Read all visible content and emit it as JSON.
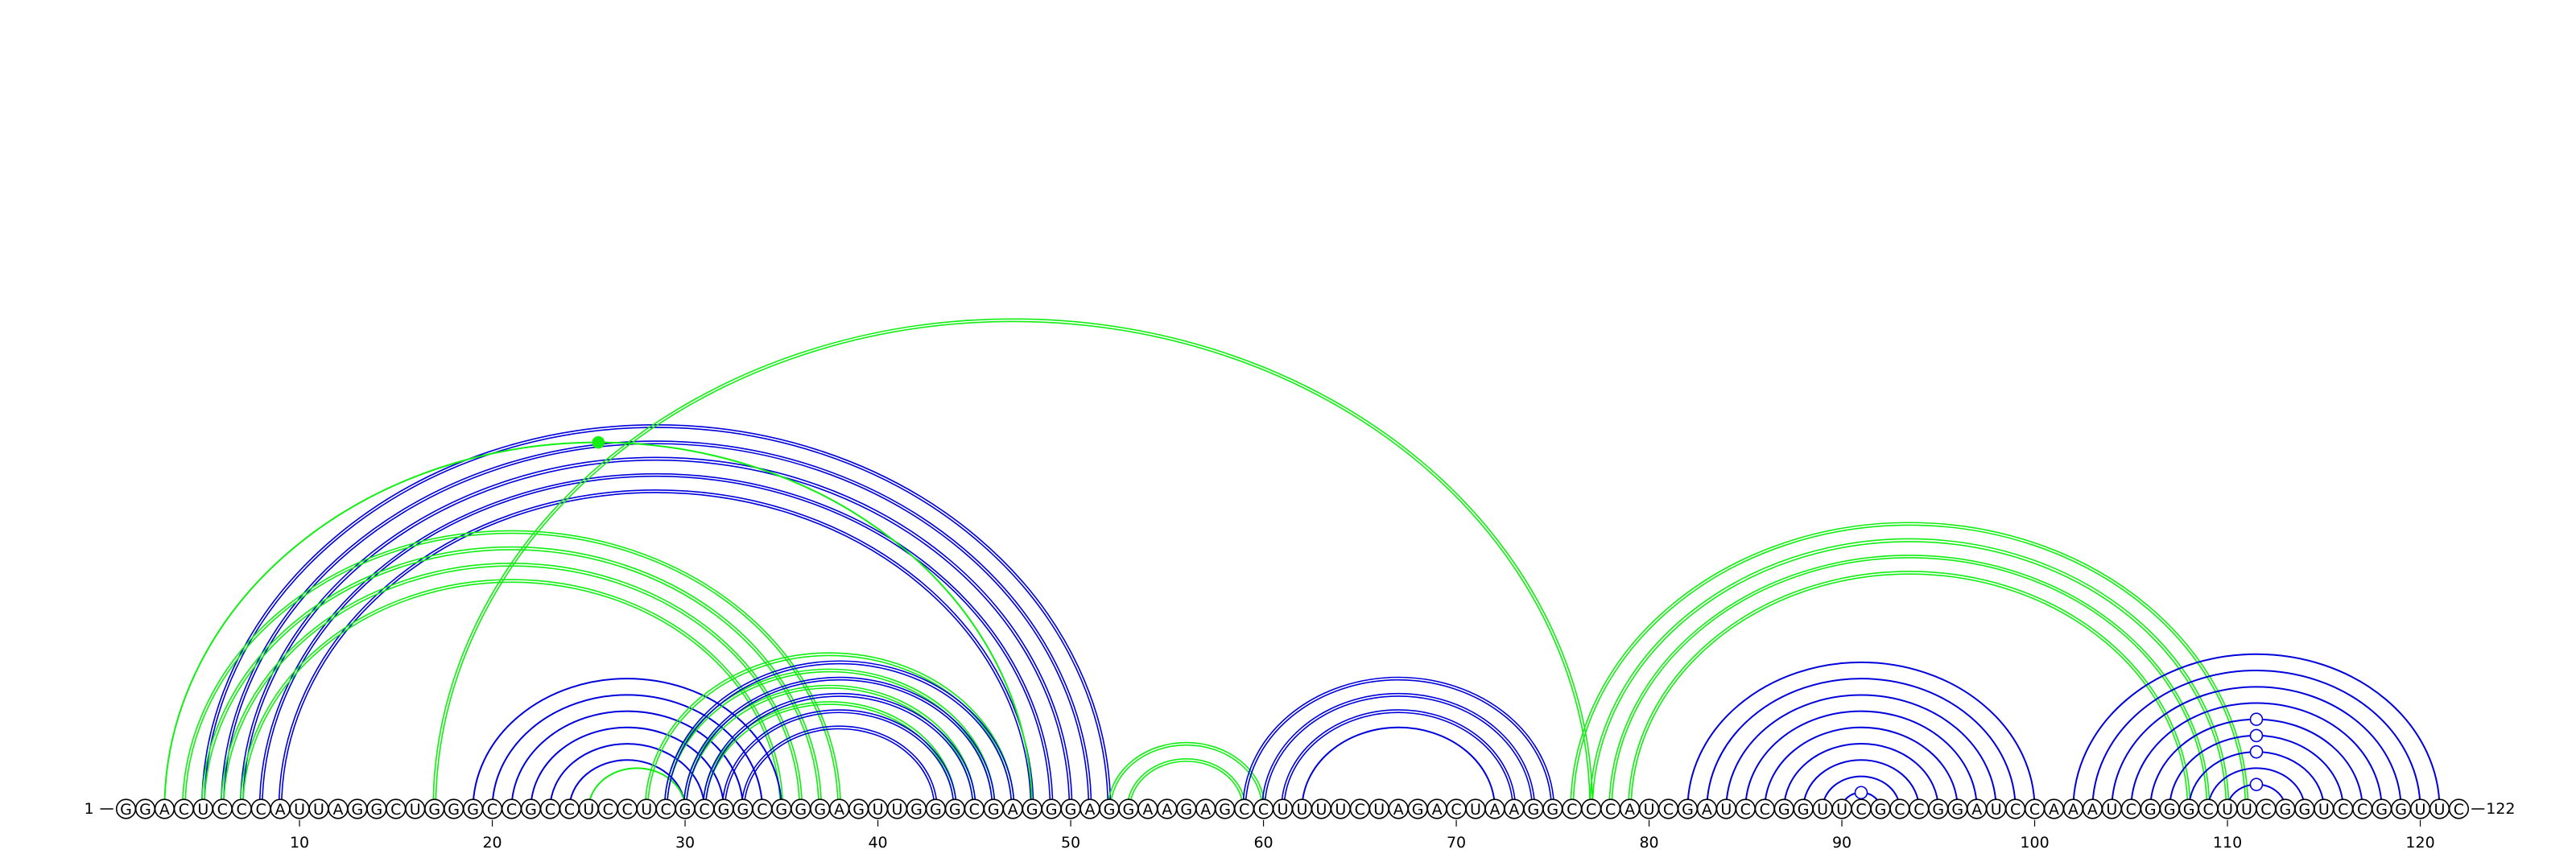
{
  "sequence": "GGACUCCCAUUAGGCUGGGCCGCCUCCUCGCGGCGGGAGUUGGGCGAGGGAGGAAGAGCCUUUUCUAGACUAAGGCCCAUCGAUCCGGUUCGCCGGAUCCAAAUCGGGCUUCGGUCCGGUUC",
  "start_label": "1",
  "end_label": "122",
  "ticks": [
    {
      "pos": 10,
      "label": "10"
    },
    {
      "pos": 20,
      "label": "20"
    },
    {
      "pos": 30,
      "label": "30"
    },
    {
      "pos": 40,
      "label": "40"
    },
    {
      "pos": 50,
      "label": "50"
    },
    {
      "pos": 60,
      "label": "60"
    },
    {
      "pos": 70,
      "label": "70"
    },
    {
      "pos": 80,
      "label": "80"
    },
    {
      "pos": 90,
      "label": "90"
    },
    {
      "pos": 100,
      "label": "100"
    },
    {
      "pos": 110,
      "label": "110"
    },
    {
      "pos": 120,
      "label": "120"
    }
  ],
  "colors": {
    "blue": "#0000dd",
    "green": "#11ee11",
    "nucleotide_stroke": "#000000"
  },
  "arcs": [
    {
      "i": 5,
      "j": 52,
      "color": "blue",
      "double": true
    },
    {
      "i": 6,
      "j": 51,
      "color": "blue",
      "double": true
    },
    {
      "i": 7,
      "j": 50,
      "color": "blue",
      "double": true
    },
    {
      "i": 8,
      "j": 49,
      "color": "blue",
      "double": true
    },
    {
      "i": 9,
      "j": 48,
      "color": "blue",
      "double": true
    },
    {
      "i": 3,
      "j": 48,
      "color": "green",
      "double": false
    },
    {
      "i": 4,
      "j": 38,
      "color": "green",
      "double": true
    },
    {
      "i": 5,
      "j": 37,
      "color": "green",
      "double": true
    },
    {
      "i": 6,
      "j": 36,
      "color": "green",
      "double": true
    },
    {
      "i": 7,
      "j": 35,
      "color": "green",
      "double": true
    },
    {
      "i": 17,
      "j": 77,
      "color": "green",
      "double": true
    },
    {
      "i": 19,
      "j": 35,
      "color": "blue",
      "double": false
    },
    {
      "i": 20,
      "j": 34,
      "color": "blue",
      "double": false
    },
    {
      "i": 21,
      "j": 33,
      "color": "blue",
      "double": false
    },
    {
      "i": 22,
      "j": 32,
      "color": "blue",
      "double": false
    },
    {
      "i": 23,
      "j": 31,
      "color": "blue",
      "double": false
    },
    {
      "i": 24,
      "j": 30,
      "color": "blue",
      "double": false
    },
    {
      "i": 25,
      "j": 30,
      "color": "green",
      "double": false
    },
    {
      "i": 28,
      "j": 47,
      "color": "green",
      "double": true
    },
    {
      "i": 29,
      "j": 46,
      "color": "green",
      "double": true
    },
    {
      "i": 30,
      "j": 45,
      "color": "green",
      "double": true
    },
    {
      "i": 31,
      "j": 44,
      "color": "green",
      "double": true
    },
    {
      "i": 29,
      "j": 47,
      "color": "blue",
      "double": true
    },
    {
      "i": 30,
      "j": 46,
      "color": "blue",
      "double": true
    },
    {
      "i": 31,
      "j": 45,
      "color": "blue",
      "double": true
    },
    {
      "i": 32,
      "j": 44,
      "color": "blue",
      "double": true
    },
    {
      "i": 33,
      "j": 43,
      "color": "blue",
      "double": true
    },
    {
      "i": 52,
      "j": 60,
      "color": "green",
      "double": true
    },
    {
      "i": 53,
      "j": 59,
      "color": "green",
      "double": true
    },
    {
      "i": 59,
      "j": 75,
      "color": "blue",
      "double": true
    },
    {
      "i": 60,
      "j": 74,
      "color": "blue",
      "double": true
    },
    {
      "i": 61,
      "j": 73,
      "color": "blue",
      "double": true
    },
    {
      "i": 62,
      "j": 72,
      "color": "blue",
      "double": false
    },
    {
      "i": 76,
      "j": 111,
      "color": "green",
      "double": true
    },
    {
      "i": 77,
      "j": 110,
      "color": "green",
      "double": true
    },
    {
      "i": 78,
      "j": 109,
      "color": "green",
      "double": true
    },
    {
      "i": 79,
      "j": 108,
      "color": "green",
      "double": true
    },
    {
      "i": 82,
      "j": 100,
      "color": "blue",
      "double": false
    },
    {
      "i": 83,
      "j": 99,
      "color": "blue",
      "double": false
    },
    {
      "i": 84,
      "j": 98,
      "color": "blue",
      "double": false
    },
    {
      "i": 85,
      "j": 97,
      "color": "blue",
      "double": false
    },
    {
      "i": 86,
      "j": 96,
      "color": "blue",
      "double": false
    },
    {
      "i": 87,
      "j": 95,
      "color": "blue",
      "double": false
    },
    {
      "i": 88,
      "j": 94,
      "color": "blue",
      "double": false
    },
    {
      "i": 89,
      "j": 93,
      "color": "blue",
      "double": false
    },
    {
      "i": 90,
      "j": 92,
      "color": "blue",
      "double": false
    },
    {
      "i": 102,
      "j": 121,
      "color": "blue",
      "double": false
    },
    {
      "i": 103,
      "j": 120,
      "color": "blue",
      "double": false
    },
    {
      "i": 104,
      "j": 119,
      "color": "blue",
      "double": false
    },
    {
      "i": 105,
      "j": 118,
      "color": "blue",
      "double": false
    },
    {
      "i": 106,
      "j": 117,
      "color": "blue",
      "double": false
    },
    {
      "i": 107,
      "j": 116,
      "color": "blue",
      "double": false
    },
    {
      "i": 108,
      "j": 115,
      "color": "blue",
      "double": false
    },
    {
      "i": 109,
      "j": 114,
      "color": "blue",
      "double": false
    },
    {
      "i": 110,
      "j": 113,
      "color": "blue",
      "double": false
    }
  ],
  "markers": [
    {
      "arc": 5,
      "style": "filled",
      "color": "green"
    },
    {
      "arc": 54,
      "style": "open",
      "color": "blue"
    },
    {
      "arc": 51,
      "style": "open",
      "color": "blue"
    },
    {
      "arc": 50,
      "style": "open",
      "color": "blue"
    },
    {
      "arc": 52,
      "style": "open",
      "color": "blue"
    },
    {
      "arc": 45,
      "style": "open",
      "color": "blue"
    }
  ]
}
